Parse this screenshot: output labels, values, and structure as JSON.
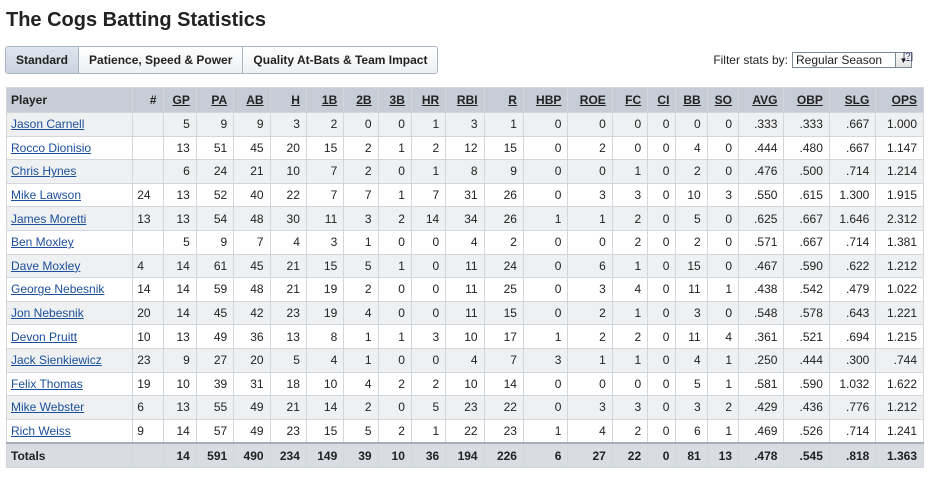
{
  "page": {
    "title": "The Cogs Batting Statistics"
  },
  "tabs": [
    "Standard",
    "Patience, Speed & Power",
    "Quality At-Bats & Team Impact"
  ],
  "filter": {
    "label": "Filter stats by:",
    "value": "Regular Season",
    "help": "[?]"
  },
  "columns": [
    "Player",
    "#",
    "GP",
    "PA",
    "AB",
    "H",
    "1B",
    "2B",
    "3B",
    "HR",
    "RBI",
    "R",
    "HBP",
    "ROE",
    "FC",
    "CI",
    "BB",
    "SO",
    "AVG",
    "OBP",
    "SLG",
    "OPS"
  ],
  "rows": [
    [
      "Jason Carnell",
      "",
      "5",
      "9",
      "9",
      "3",
      "2",
      "0",
      "0",
      "1",
      "3",
      "1",
      "0",
      "0",
      "0",
      "0",
      "0",
      "0",
      ".333",
      ".333",
      ".667",
      "1.000"
    ],
    [
      "Rocco Dionisio",
      "",
      "13",
      "51",
      "45",
      "20",
      "15",
      "2",
      "1",
      "2",
      "12",
      "15",
      "0",
      "2",
      "0",
      "0",
      "4",
      "0",
      ".444",
      ".480",
      ".667",
      "1.147"
    ],
    [
      "Chris Hynes",
      "",
      "6",
      "24",
      "21",
      "10",
      "7",
      "2",
      "0",
      "1",
      "8",
      "9",
      "0",
      "0",
      "1",
      "0",
      "2",
      "0",
      ".476",
      ".500",
      ".714",
      "1.214"
    ],
    [
      "Mike Lawson",
      "24",
      "13",
      "52",
      "40",
      "22",
      "7",
      "7",
      "1",
      "7",
      "31",
      "26",
      "0",
      "3",
      "3",
      "0",
      "10",
      "3",
      ".550",
      ".615",
      "1.300",
      "1.915"
    ],
    [
      "James Moretti",
      "13",
      "13",
      "54",
      "48",
      "30",
      "11",
      "3",
      "2",
      "14",
      "34",
      "26",
      "1",
      "1",
      "2",
      "0",
      "5",
      "0",
      ".625",
      ".667",
      "1.646",
      "2.312"
    ],
    [
      "Ben Moxley",
      "",
      "5",
      "9",
      "7",
      "4",
      "3",
      "1",
      "0",
      "0",
      "4",
      "2",
      "0",
      "0",
      "2",
      "0",
      "2",
      "0",
      ".571",
      ".667",
      ".714",
      "1.381"
    ],
    [
      "Dave Moxley",
      "4",
      "14",
      "61",
      "45",
      "21",
      "15",
      "5",
      "1",
      "0",
      "11",
      "24",
      "0",
      "6",
      "1",
      "0",
      "15",
      "0",
      ".467",
      ".590",
      ".622",
      "1.212"
    ],
    [
      "George Nebesnik",
      "14",
      "14",
      "59",
      "48",
      "21",
      "19",
      "2",
      "0",
      "0",
      "11",
      "25",
      "0",
      "3",
      "4",
      "0",
      "11",
      "1",
      ".438",
      ".542",
      ".479",
      "1.022"
    ],
    [
      "Jon Nebesnik",
      "20",
      "14",
      "45",
      "42",
      "23",
      "19",
      "4",
      "0",
      "0",
      "11",
      "15",
      "0",
      "2",
      "1",
      "0",
      "3",
      "0",
      ".548",
      ".578",
      ".643",
      "1.221"
    ],
    [
      "Devon Pruitt",
      "10",
      "13",
      "49",
      "36",
      "13",
      "8",
      "1",
      "1",
      "3",
      "10",
      "17",
      "1",
      "2",
      "2",
      "0",
      "11",
      "4",
      ".361",
      ".521",
      ".694",
      "1.215"
    ],
    [
      "Jack Sienkiewicz",
      "23",
      "9",
      "27",
      "20",
      "5",
      "4",
      "1",
      "0",
      "0",
      "4",
      "7",
      "3",
      "1",
      "1",
      "0",
      "4",
      "1",
      ".250",
      ".444",
      ".300",
      ".744"
    ],
    [
      "Felix Thomas",
      "19",
      "10",
      "39",
      "31",
      "18",
      "10",
      "4",
      "2",
      "2",
      "10",
      "14",
      "0",
      "0",
      "0",
      "0",
      "5",
      "1",
      ".581",
      ".590",
      "1.032",
      "1.622"
    ],
    [
      "Mike Webster",
      "6",
      "13",
      "55",
      "49",
      "21",
      "14",
      "2",
      "0",
      "5",
      "23",
      "22",
      "0",
      "3",
      "3",
      "0",
      "3",
      "2",
      ".429",
      ".436",
      ".776",
      "1.212"
    ],
    [
      "Rich Weiss",
      "9",
      "14",
      "57",
      "49",
      "23",
      "15",
      "5",
      "2",
      "1",
      "22",
      "23",
      "1",
      "4",
      "2",
      "0",
      "6",
      "1",
      ".469",
      ".526",
      ".714",
      "1.241"
    ]
  ],
  "totals": [
    "Totals",
    "",
    "14",
    "591",
    "490",
    "234",
    "149",
    "39",
    "10",
    "36",
    "194",
    "226",
    "6",
    "27",
    "22",
    "0",
    "81",
    "13",
    ".478",
    ".545",
    ".818",
    "1.363"
  ]
}
